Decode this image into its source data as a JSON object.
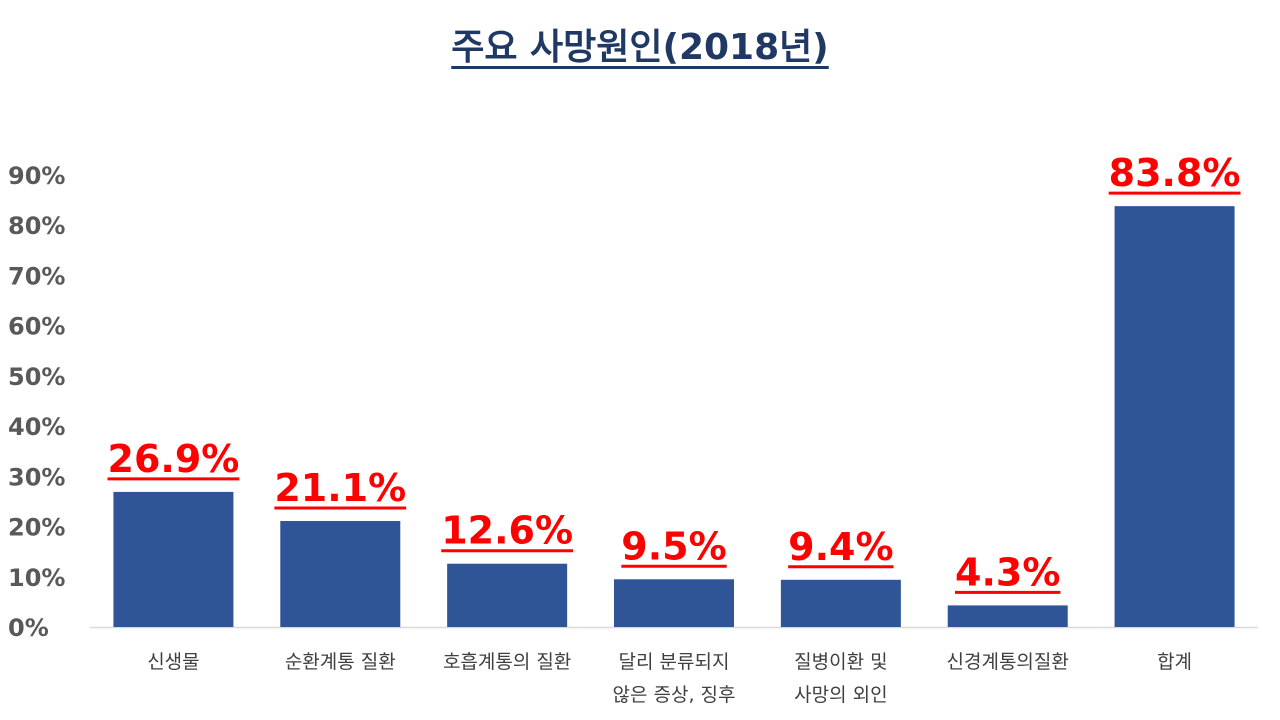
{
  "colors": {
    "title": "#1f3864",
    "bar": "#2f5597",
    "data_label": "#ff0000",
    "axis_text": "#595959",
    "category_text": "#404040",
    "axis_line": "#d9d9d9"
  },
  "chart_data": {
    "type": "bar",
    "title": "주요 사망원인(2018년)",
    "xlabel": "",
    "ylabel": "",
    "categories": [
      [
        "신생물"
      ],
      [
        "순환계통 질환"
      ],
      [
        "호흡계통의 질환"
      ],
      [
        "달리 분류되지",
        "않은 증상, 징후"
      ],
      [
        "질병이환 및",
        "사망의 외인"
      ],
      [
        "신경계통의질환"
      ],
      [
        "합계"
      ]
    ],
    "values": [
      26.9,
      21.1,
      12.6,
      9.5,
      9.4,
      4.3,
      83.8
    ],
    "value_labels": [
      "26.9%",
      "21.1%",
      "12.6%",
      "9.5%",
      "9.4%",
      "4.3%",
      "83.8%"
    ],
    "y_ticks": [
      "0%",
      "10%",
      "20%",
      "30%",
      "40%",
      "50%",
      "60%",
      "70%",
      "80%",
      "90%"
    ],
    "ylim": [
      0,
      90
    ],
    "grid": false,
    "legend": "none"
  }
}
